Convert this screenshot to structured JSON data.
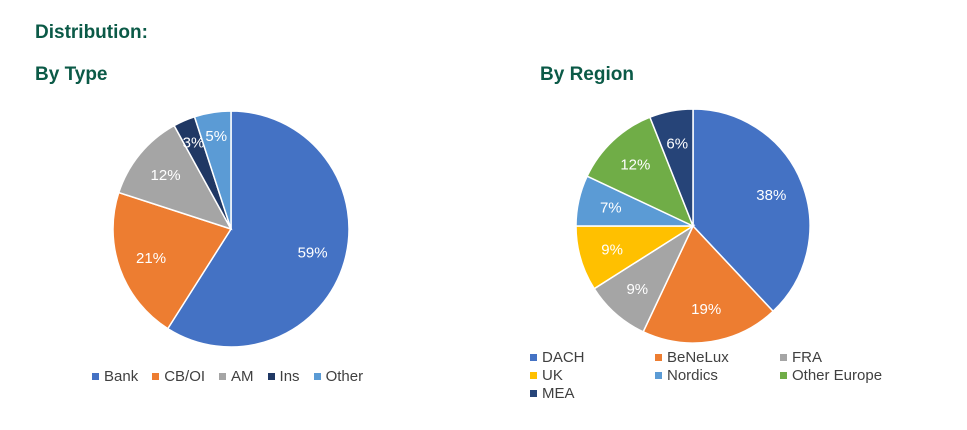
{
  "title": "Distribution:",
  "chart_data": [
    {
      "type": "pie",
      "title": "By Type",
      "categories": [
        "Bank",
        "CB/OI",
        "AM",
        "Ins",
        "Other"
      ],
      "values": [
        59,
        21,
        12,
        3,
        5
      ],
      "labels": [
        "59%",
        "21%",
        "12%",
        "3%",
        "5%"
      ],
      "colors": [
        "#4472c4",
        "#ed7d31",
        "#a5a5a5",
        "#203864",
        "#5b9bd5"
      ],
      "legend": "bottom",
      "legend_items": [
        {
          "name": "Bank",
          "color": "#4472c4"
        },
        {
          "name": "CB/OI",
          "color": "#ed7d31"
        },
        {
          "name": "AM",
          "color": "#a5a5a5"
        },
        {
          "name": "Ins",
          "color": "#203864"
        },
        {
          "name": "Other",
          "color": "#5b9bd5"
        }
      ]
    },
    {
      "type": "pie",
      "title": "By Region",
      "categories": [
        "DACH",
        "BeNeLux",
        "FRA",
        "UK",
        "Nordics",
        "Other Europe",
        "MEA"
      ],
      "values": [
        38,
        19,
        9,
        9,
        7,
        12,
        6
      ],
      "labels": [
        "38%",
        "19%",
        "9%",
        "9%",
        "7%",
        "12%",
        "6%"
      ],
      "colors": [
        "#4472c4",
        "#ed7d31",
        "#a5a5a5",
        "#ffc000",
        "#5b9bd5",
        "#70ad47",
        "#264478"
      ],
      "legend": "bottom",
      "legend_items": [
        {
          "name": "DACH",
          "color": "#4472c4"
        },
        {
          "name": "BeNeLux",
          "color": "#ed7d31"
        },
        {
          "name": "FRA",
          "color": "#a5a5a5"
        },
        {
          "name": "UK",
          "color": "#ffc000"
        },
        {
          "name": "Nordics",
          "color": "#5b9bd5"
        },
        {
          "name": "Other Europe",
          "color": "#70ad47"
        },
        {
          "name": "MEA",
          "color": "#264478"
        }
      ]
    }
  ]
}
